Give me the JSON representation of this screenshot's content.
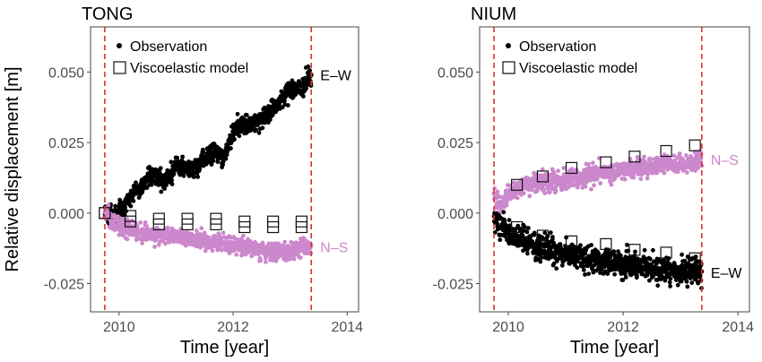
{
  "chart_data": [
    {
      "type": "scatter",
      "title": "TONG",
      "xlabel": "Time [year]",
      "ylabel": "Relative displacement [m]",
      "xlim": [
        2009.5,
        2014.2
      ],
      "ylim": [
        -0.035,
        0.066
      ],
      "xticks": [
        2010,
        2012,
        2014
      ],
      "yticks": [
        -0.025,
        0.0,
        0.025,
        0.05
      ],
      "ytick_labels": [
        "-0.025",
        "0.000",
        "0.025",
        "0.050"
      ],
      "vlines": [
        2009.75,
        2013.37
      ],
      "grid": false,
      "legend": {
        "position": "top-left",
        "entries": [
          {
            "label": "Observation",
            "marker": "dot"
          },
          {
            "label": "Viscoelastic model",
            "marker": "open-square"
          }
        ]
      },
      "series": [
        {
          "label": "E–W",
          "color": "#000000",
          "observation_trend": [
            [
              2009.75,
              0.0
            ],
            [
              2009.9,
              -0.002
            ],
            [
              2010.1,
              0.003
            ],
            [
              2010.3,
              0.008
            ],
            [
              2010.55,
              0.013
            ],
            [
              2010.8,
              0.011
            ],
            [
              2011.0,
              0.017
            ],
            [
              2011.3,
              0.015
            ],
            [
              2011.6,
              0.021
            ],
            [
              2011.85,
              0.02
            ],
            [
              2012.05,
              0.031
            ],
            [
              2012.3,
              0.031
            ],
            [
              2012.55,
              0.034
            ],
            [
              2012.75,
              0.038
            ],
            [
              2013.0,
              0.044
            ],
            [
              2013.2,
              0.044
            ],
            [
              2013.37,
              0.049
            ]
          ],
          "scatter_sd": 0.0017
        },
        {
          "label": "N–S",
          "color": "#cc88cc",
          "observation_trend": [
            [
              2009.75,
              0.001
            ],
            [
              2009.9,
              -0.003
            ],
            [
              2010.1,
              -0.005
            ],
            [
              2010.4,
              -0.007
            ],
            [
              2010.8,
              -0.008
            ],
            [
              2011.2,
              -0.009
            ],
            [
              2011.6,
              -0.01
            ],
            [
              2012.0,
              -0.011
            ],
            [
              2012.4,
              -0.013
            ],
            [
              2012.8,
              -0.014
            ],
            [
              2013.1,
              -0.013
            ],
            [
              2013.37,
              -0.012
            ]
          ],
          "scatter_sd": 0.0015
        }
      ],
      "model": [
        {
          "series": "E–W",
          "points": [
            [
              2009.75,
              0.0
            ],
            [
              2010.2,
              -0.001
            ],
            [
              2010.7,
              -0.002
            ],
            [
              2011.2,
              -0.002
            ],
            [
              2011.7,
              -0.002
            ],
            [
              2012.2,
              -0.003
            ],
            [
              2012.7,
              -0.003
            ],
            [
              2013.2,
              -0.003
            ]
          ]
        },
        {
          "series": "N–S",
          "points": [
            [
              2009.75,
              0.0
            ],
            [
              2010.2,
              -0.003
            ],
            [
              2010.7,
              -0.004
            ],
            [
              2011.2,
              -0.004
            ],
            [
              2011.7,
              -0.004
            ],
            [
              2012.2,
              -0.005
            ],
            [
              2012.7,
              -0.005
            ],
            [
              2013.2,
              -0.005
            ]
          ]
        }
      ]
    },
    {
      "type": "scatter",
      "title": "NIUM",
      "xlabel": "Time [year]",
      "ylabel": "",
      "xlim": [
        2009.5,
        2014.2
      ],
      "ylim": [
        -0.035,
        0.066
      ],
      "xticks": [
        2010,
        2012,
        2014
      ],
      "yticks": [
        -0.025,
        0.0,
        0.025,
        0.05
      ],
      "ytick_labels": [
        "-0.025",
        "0.000",
        "0.025",
        "0.050"
      ],
      "vlines": [
        2009.75,
        2013.37
      ],
      "grid": false,
      "legend": {
        "position": "top-left",
        "entries": [
          {
            "label": "Observation",
            "marker": "dot"
          },
          {
            "label": "Viscoelastic model",
            "marker": "open-square"
          }
        ]
      },
      "series": [
        {
          "label": "N–S",
          "color": "#cc88cc",
          "observation_trend": [
            [
              2009.75,
              0.007
            ],
            [
              2009.85,
              0.002
            ],
            [
              2010.0,
              0.007
            ],
            [
              2010.3,
              0.01
            ],
            [
              2010.7,
              0.011
            ],
            [
              2011.1,
              0.012
            ],
            [
              2011.5,
              0.014
            ],
            [
              2011.9,
              0.015
            ],
            [
              2012.3,
              0.016
            ],
            [
              2012.7,
              0.017
            ],
            [
              2013.0,
              0.017
            ],
            [
              2013.37,
              0.019
            ]
          ],
          "scatter_sd": 0.0016
        },
        {
          "label": "E–W",
          "color": "#000000",
          "observation_trend": [
            [
              2009.75,
              -0.002
            ],
            [
              2009.85,
              -0.005
            ],
            [
              2010.1,
              -0.008
            ],
            [
              2010.4,
              -0.011
            ],
            [
              2010.7,
              -0.013
            ],
            [
              2011.0,
              -0.014
            ],
            [
              2011.3,
              -0.016
            ],
            [
              2011.6,
              -0.017
            ],
            [
              2011.9,
              -0.018
            ],
            [
              2012.2,
              -0.019
            ],
            [
              2012.6,
              -0.02
            ],
            [
              2013.0,
              -0.021
            ],
            [
              2013.37,
              -0.021
            ]
          ],
          "scatter_sd": 0.0022
        }
      ],
      "model": [
        {
          "series": "N–S",
          "points": [
            [
              2010.15,
              0.01
            ],
            [
              2010.6,
              0.013
            ],
            [
              2011.1,
              0.016
            ],
            [
              2011.7,
              0.018
            ],
            [
              2012.2,
              0.02
            ],
            [
              2012.75,
              0.022
            ],
            [
              2013.25,
              0.024
            ]
          ]
        },
        {
          "series": "E–W",
          "points": [
            [
              2010.15,
              -0.005
            ],
            [
              2010.6,
              -0.008
            ],
            [
              2011.1,
              -0.01
            ],
            [
              2011.7,
              -0.011
            ],
            [
              2012.2,
              -0.013
            ],
            [
              2012.75,
              -0.014
            ],
            [
              2013.25,
              -0.016
            ]
          ]
        }
      ]
    }
  ]
}
